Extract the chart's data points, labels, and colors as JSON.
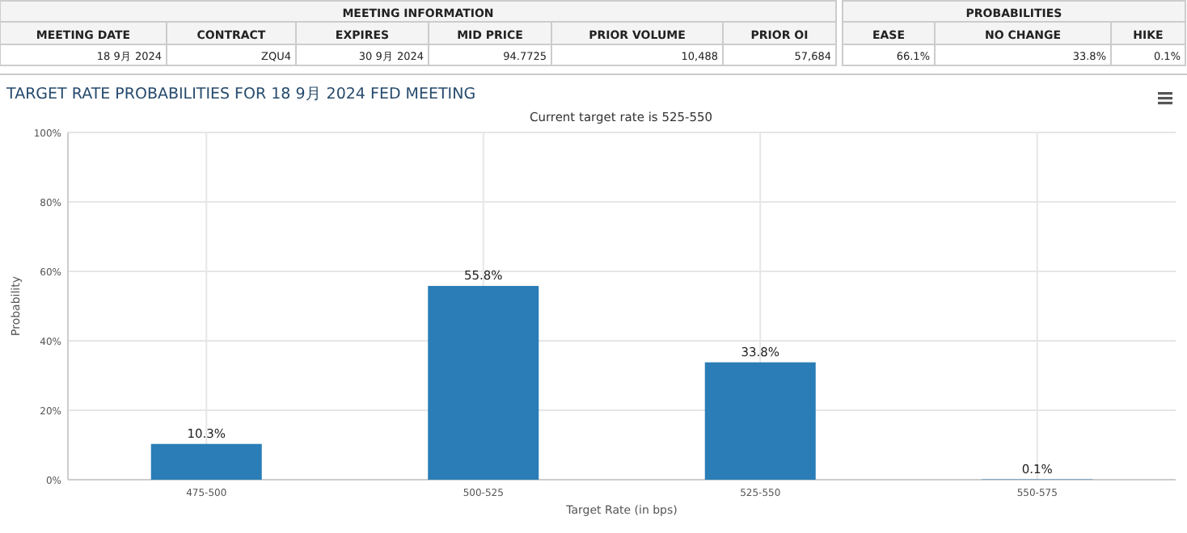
{
  "chart_data": {
    "type": "bar",
    "title": "TARGET RATE PROBABILITIES FOR 18 9月 2024 FED MEETING",
    "subtitle": "Current target rate is 525-550",
    "xlabel": "Target Rate (in bps)",
    "ylabel": "Probability",
    "categories": [
      "475-500",
      "500-525",
      "525-550",
      "550-575"
    ],
    "values": [
      10.3,
      55.8,
      33.8,
      0.1
    ],
    "value_labels": [
      "10.3%",
      "55.8%",
      "33.8%",
      "0.1%"
    ],
    "color": "#2a7db6",
    "ylim": [
      0,
      100
    ],
    "yticks": [
      {
        "value": 0,
        "label": "0%"
      },
      {
        "value": 20,
        "label": "20%"
      },
      {
        "value": 40,
        "label": "40%"
      },
      {
        "value": 60,
        "label": "60%"
      },
      {
        "value": 80,
        "label": "80%"
      },
      {
        "value": 100,
        "label": "100%"
      }
    ],
    "grid": true,
    "annotations": [
      "MEETING INFORMATION",
      "MEETING DATE",
      "CONTRACT",
      "EXPIRES",
      "MID PRICE",
      "PRIOR VOLUME",
      "PRIOR OI",
      "18 9月 2024",
      "ZQU4",
      "30 9月 2024",
      "94.7725",
      "10,488",
      "57,684",
      "PROBABILITIES",
      "EASE",
      "NO CHANGE",
      "HIKE",
      "66.1%",
      "33.8%",
      "0.1%"
    ]
  }
}
